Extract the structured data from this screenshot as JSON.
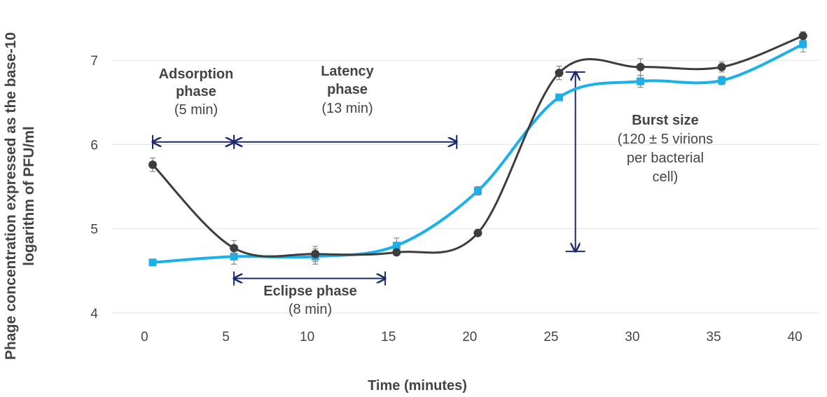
{
  "chart_data": {
    "type": "line",
    "xlabel": "Time (minutes)",
    "ylabel_lines": [
      "Phage concentration expressed as the base-10",
      "logarithm of PFU/ml"
    ],
    "x_ticks": [
      0,
      5,
      10,
      15,
      20,
      25,
      30,
      35,
      40
    ],
    "y_ticks": [
      4,
      5,
      6,
      7
    ],
    "xlim": [
      -2,
      41.5
    ],
    "ylim": [
      4,
      7.3
    ],
    "grid": "horizontal",
    "series": [
      {
        "color": "#3d3d3d",
        "marker": "circle",
        "x": [
          0.5,
          5.5,
          10.5,
          15.5,
          20.5,
          25.5,
          30.5,
          35.5,
          40.5
        ],
        "y": [
          5.76,
          4.77,
          4.7,
          4.72,
          4.95,
          6.85,
          6.92,
          6.92,
          7.29
        ],
        "err": [
          0.08,
          0.09,
          0.09,
          0.0,
          0.0,
          0.08,
          0.1,
          0.06,
          0.05
        ]
      },
      {
        "color": "#1ab0ec",
        "marker": "square",
        "x": [
          0.5,
          5.5,
          10.5,
          15.5,
          20.5,
          25.5,
          30.5,
          35.5,
          40.5
        ],
        "y": [
          4.6,
          4.67,
          4.67,
          4.8,
          5.45,
          6.56,
          6.75,
          6.76,
          7.19
        ],
        "err": [
          0.0,
          0.09,
          0.09,
          0.09,
          0.05,
          0.0,
          0.07,
          0.05,
          0.09
        ]
      }
    ],
    "annotations": {
      "adsorption": {
        "title_lines": [
          "Adsorption",
          "phase"
        ],
        "detail": "(5 min)",
        "x_start": 0.5,
        "x_end": 5.5,
        "y": 6.03
      },
      "latency": {
        "title_lines": [
          "Latency",
          "phase"
        ],
        "detail": "(13 min)",
        "x_start": 5.5,
        "x_end": 19.2,
        "y": 6.03
      },
      "eclipse": {
        "title": "Eclipse phase",
        "detail": "(8 min)",
        "x_start": 5.5,
        "x_end": 14.8,
        "y": 4.41
      },
      "burst": {
        "title": "Burst size",
        "detail_lines": [
          "(120 ± 5 virions",
          "per bacterial",
          "cell)"
        ],
        "x": 26.5,
        "y_start": 4.73,
        "y_end": 6.86
      }
    },
    "colors": {
      "arrow": "#1a2a6c",
      "grid": "#e3e3e3",
      "text": "#444444"
    }
  }
}
